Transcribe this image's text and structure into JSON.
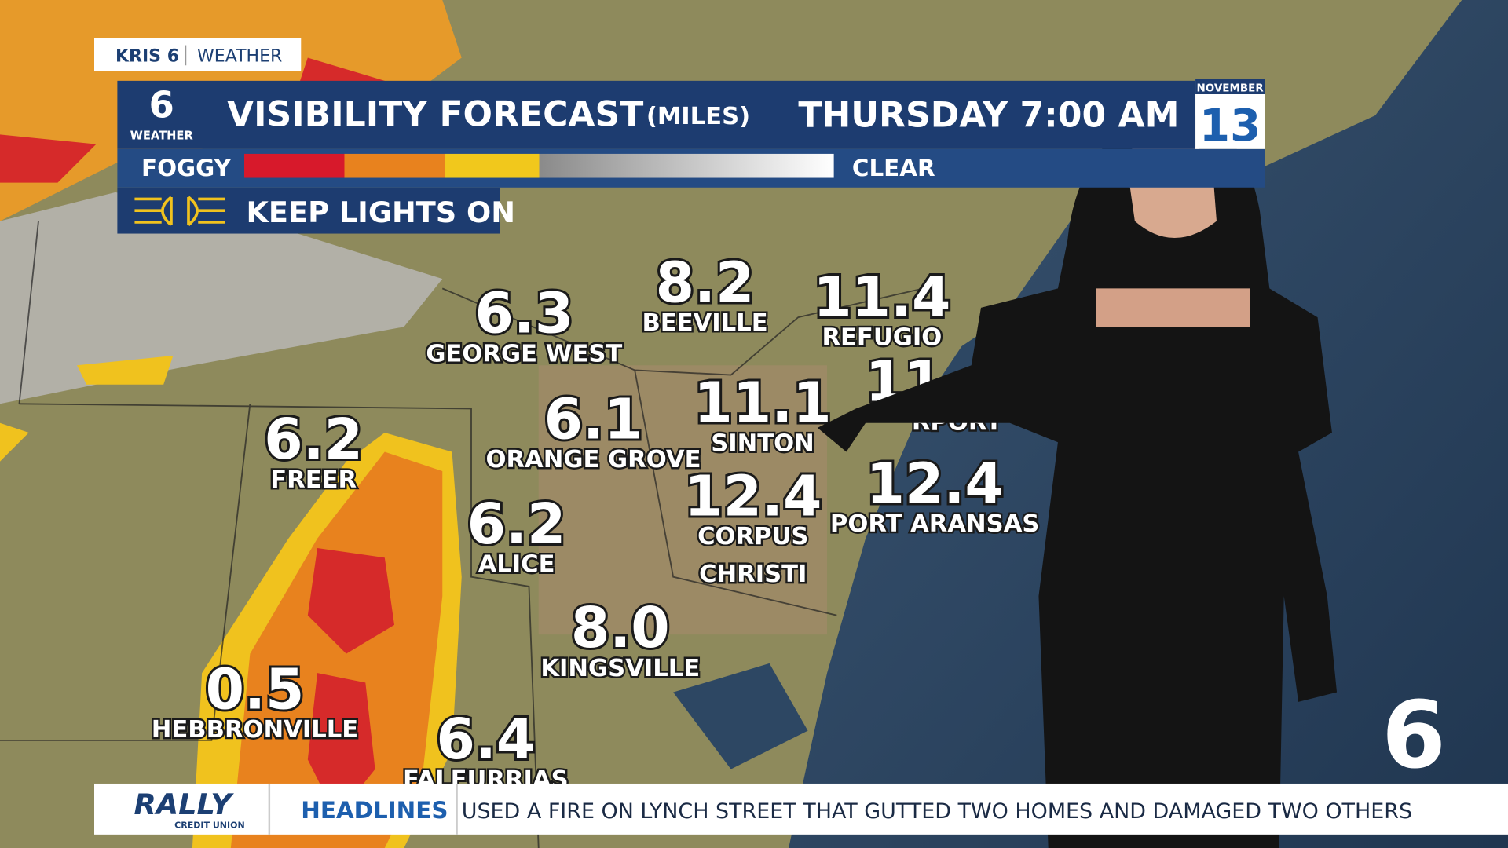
{
  "header": {
    "brand": "KRIS 6",
    "brand_section": "WEATHER",
    "logo_number": "6",
    "logo_text": "WEATHER",
    "title": "VISIBILITY FORECAST",
    "units": "(MILES)",
    "time": "THURSDAY 7:00 AM",
    "month": "NOVEMBER",
    "day": "13"
  },
  "legend": {
    "low": "FOGGY",
    "high": "CLEAR"
  },
  "advisory": "KEEP LIGHTS ON",
  "cities": [
    {
      "value": "6.3",
      "name": [
        "GEORGE WEST"
      ]
    },
    {
      "value": "8.2",
      "name": [
        "BEEVILLE"
      ]
    },
    {
      "value": "11.4",
      "name": [
        "REFUGIO"
      ]
    },
    {
      "value": "11",
      "name": [
        "RPORT"
      ]
    },
    {
      "value": "6.1",
      "name": [
        "ORANGE GROVE"
      ]
    },
    {
      "value": "11.1",
      "name": [
        "SINTON"
      ]
    },
    {
      "value": "6.2",
      "name": [
        "FREER"
      ]
    },
    {
      "value": "6.2",
      "name": [
        "ALICE"
      ]
    },
    {
      "value": "12.4",
      "name": [
        "CORPUS",
        "CHRISTI"
      ]
    },
    {
      "value": "12.4",
      "name": [
        "PORT ARANSAS"
      ]
    },
    {
      "value": "8.0",
      "name": [
        "KINGSVILLE"
      ]
    },
    {
      "value": "0.5",
      "name": [
        "HEBBRONVILLE"
      ]
    },
    {
      "value": "6.4",
      "name": [
        "FALFURRIAS"
      ]
    }
  ],
  "ticker": {
    "sponsor": "RALLY",
    "sponsor_sub": "CREDIT UNION",
    "label": "HEADLINES",
    "text": "USED A FIRE ON LYNCH STREET THAT GUTTED TWO HOMES AND DAMAGED TWO OTHERS"
  },
  "station_bug": "6"
}
